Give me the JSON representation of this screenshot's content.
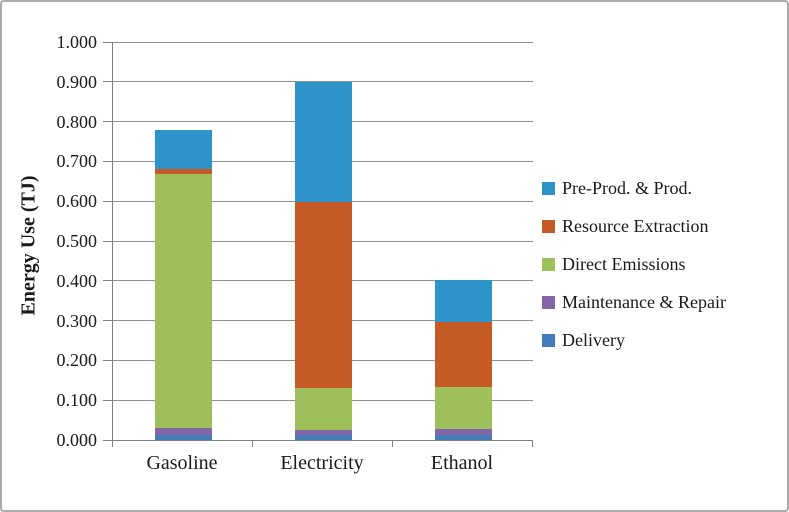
{
  "chart_data": {
    "type": "bar",
    "subtype": "stacked-vertical",
    "title": "",
    "xlabel": "",
    "ylabel": "Energy Use (TJ)",
    "ylim": [
      0,
      1.0
    ],
    "ytick_labels": [
      "1.000",
      "0.900",
      "0.800",
      "0.700",
      "0.600",
      "0.500",
      "0.400",
      "0.300",
      "0.200",
      "0.100",
      "0.000"
    ],
    "grid": true,
    "legend_position": "right",
    "categories": [
      "Gasoline",
      "Electricity",
      "Ethanol"
    ],
    "series": [
      {
        "name": "Delivery",
        "color": "#447cb9",
        "values": [
          0.013,
          0.012,
          0.012
        ]
      },
      {
        "name": "Maintenance & Repair",
        "color": "#8465a5",
        "values": [
          0.017,
          0.013,
          0.016
        ]
      },
      {
        "name": "Direct Emissions",
        "color": "#9dc05b",
        "values": [
          0.638,
          0.105,
          0.105
        ]
      },
      {
        "name": "Resource Extraction",
        "color": "#c65a27",
        "values": [
          0.012,
          0.467,
          0.164
        ]
      },
      {
        "name": "Pre-Prod. & Prod.",
        "color": "#2e93c9",
        "values": [
          0.1,
          0.303,
          0.106
        ]
      }
    ],
    "stack_totals": [
      0.78,
      0.9,
      0.403
    ],
    "legend_order": [
      "Pre-Prod. & Prod.",
      "Resource Extraction",
      "Direct Emissions",
      "Maintenance & Repair",
      "Delivery"
    ],
    "colors": {
      "gridline": "#8f8f8f",
      "axis": "#7f7f7f",
      "frame_border": "#ababab",
      "text": "#1a1a1a",
      "background": "#ffffff"
    }
  }
}
